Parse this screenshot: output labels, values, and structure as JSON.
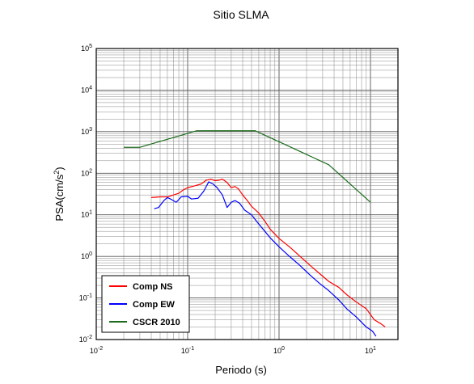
{
  "chart_data": {
    "type": "line",
    "title": "Sitio SLMA",
    "xlabel": "Periodo (s)",
    "ylabel_base": "PSA(cm/s",
    "ylabel_exp": "2",
    "ylabel_close": ")",
    "xscale": "log",
    "yscale": "log",
    "xlim": [
      0.01,
      20
    ],
    "ylim": [
      0.01,
      100000
    ],
    "grid": true,
    "legend_position": "bottom-left",
    "x_tick_labels": [
      {
        "base": "10",
        "exp": "-2"
      },
      {
        "base": "10",
        "exp": "-1"
      },
      {
        "base": "10",
        "exp": "0"
      },
      {
        "base": "10",
        "exp": "1"
      }
    ],
    "y_tick_labels": [
      {
        "base": "10",
        "exp": "-2"
      },
      {
        "base": "10",
        "exp": "-1"
      },
      {
        "base": "10",
        "exp": "0"
      },
      {
        "base": "10",
        "exp": "1"
      },
      {
        "base": "10",
        "exp": "2"
      },
      {
        "base": "10",
        "exp": "3"
      },
      {
        "base": "10",
        "exp": "4"
      },
      {
        "base": "10",
        "exp": "5"
      }
    ],
    "series": [
      {
        "name": "Comp NS",
        "color": "#ff0000",
        "points": [
          [
            0.04,
            26
          ],
          [
            0.05,
            27
          ],
          [
            0.06,
            27
          ],
          [
            0.07,
            30
          ],
          [
            0.08,
            33
          ],
          [
            0.09,
            40
          ],
          [
            0.1,
            45
          ],
          [
            0.12,
            50
          ],
          [
            0.14,
            55
          ],
          [
            0.16,
            68
          ],
          [
            0.18,
            72
          ],
          [
            0.2,
            66
          ],
          [
            0.22,
            68
          ],
          [
            0.24,
            72
          ],
          [
            0.27,
            60
          ],
          [
            0.3,
            45
          ],
          [
            0.33,
            48
          ],
          [
            0.36,
            42
          ],
          [
            0.4,
            30
          ],
          [
            0.45,
            22
          ],
          [
            0.5,
            16
          ],
          [
            0.6,
            11
          ],
          [
            0.7,
            7
          ],
          [
            0.8,
            4.5
          ],
          [
            1.0,
            2.7
          ],
          [
            1.3,
            1.7
          ],
          [
            1.7,
            1.0
          ],
          [
            2.2,
            0.6
          ],
          [
            2.8,
            0.38
          ],
          [
            3.5,
            0.25
          ],
          [
            4.5,
            0.18
          ],
          [
            5.5,
            0.12
          ],
          [
            7.0,
            0.08
          ],
          [
            9.0,
            0.055
          ],
          [
            11.0,
            0.03
          ],
          [
            13.0,
            0.024
          ],
          [
            14.5,
            0.02
          ]
        ]
      },
      {
        "name": "Comp EW",
        "color": "#0000ff",
        "points": [
          [
            0.043,
            14
          ],
          [
            0.048,
            15
          ],
          [
            0.055,
            22
          ],
          [
            0.06,
            26
          ],
          [
            0.065,
            24
          ],
          [
            0.075,
            20
          ],
          [
            0.085,
            27
          ],
          [
            0.1,
            28
          ],
          [
            0.11,
            24
          ],
          [
            0.13,
            25
          ],
          [
            0.15,
            37
          ],
          [
            0.17,
            62
          ],
          [
            0.19,
            55
          ],
          [
            0.21,
            45
          ],
          [
            0.24,
            30
          ],
          [
            0.27,
            15
          ],
          [
            0.3,
            20
          ],
          [
            0.33,
            22
          ],
          [
            0.37,
            19
          ],
          [
            0.42,
            13
          ],
          [
            0.5,
            10
          ],
          [
            0.6,
            6
          ],
          [
            0.7,
            4
          ],
          [
            0.8,
            2.8
          ],
          [
            1.0,
            1.7
          ],
          [
            1.3,
            1.0
          ],
          [
            1.7,
            0.6
          ],
          [
            2.2,
            0.35
          ],
          [
            2.8,
            0.22
          ],
          [
            3.5,
            0.15
          ],
          [
            4.5,
            0.09
          ],
          [
            5.5,
            0.055
          ],
          [
            7.0,
            0.035
          ],
          [
            9.0,
            0.02
          ],
          [
            10.5,
            0.016
          ],
          [
            11.5,
            0.012
          ]
        ]
      },
      {
        "name": "CSCR 2010",
        "color": "#1a6b1a",
        "points": [
          [
            0.02,
            420
          ],
          [
            0.03,
            420
          ],
          [
            0.125,
            1050
          ],
          [
            0.55,
            1050
          ],
          [
            3.5,
            160
          ],
          [
            10.0,
            20
          ]
        ]
      }
    ]
  }
}
